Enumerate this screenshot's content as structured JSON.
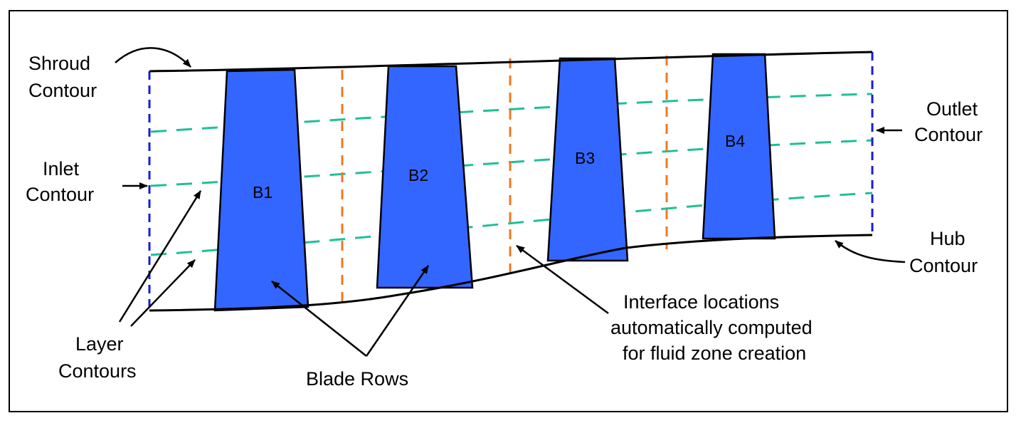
{
  "colors": {
    "blade_fill": "#3366ff",
    "layer_line": "#1fbf99",
    "interface_line": "#f07820",
    "boundary_line": "#1a1adb",
    "outline": "#000000"
  },
  "labels": {
    "shroud": [
      "Shroud",
      "Contour"
    ],
    "inlet": [
      "Inlet",
      "Contour"
    ],
    "outlet": [
      "Outlet",
      "Contour"
    ],
    "hub": [
      "Hub",
      "Contour"
    ],
    "layer": [
      "Layer",
      "Contours"
    ],
    "blade_rows": "Blade Rows",
    "interface": [
      "Interface locations",
      "automatically computed",
      "for fluid zone creation"
    ]
  },
  "blades": [
    {
      "id": "B1",
      "label": "B1"
    },
    {
      "id": "B2",
      "label": "B2"
    },
    {
      "id": "B3",
      "label": "B3"
    },
    {
      "id": "B4",
      "label": "B4"
    }
  ]
}
